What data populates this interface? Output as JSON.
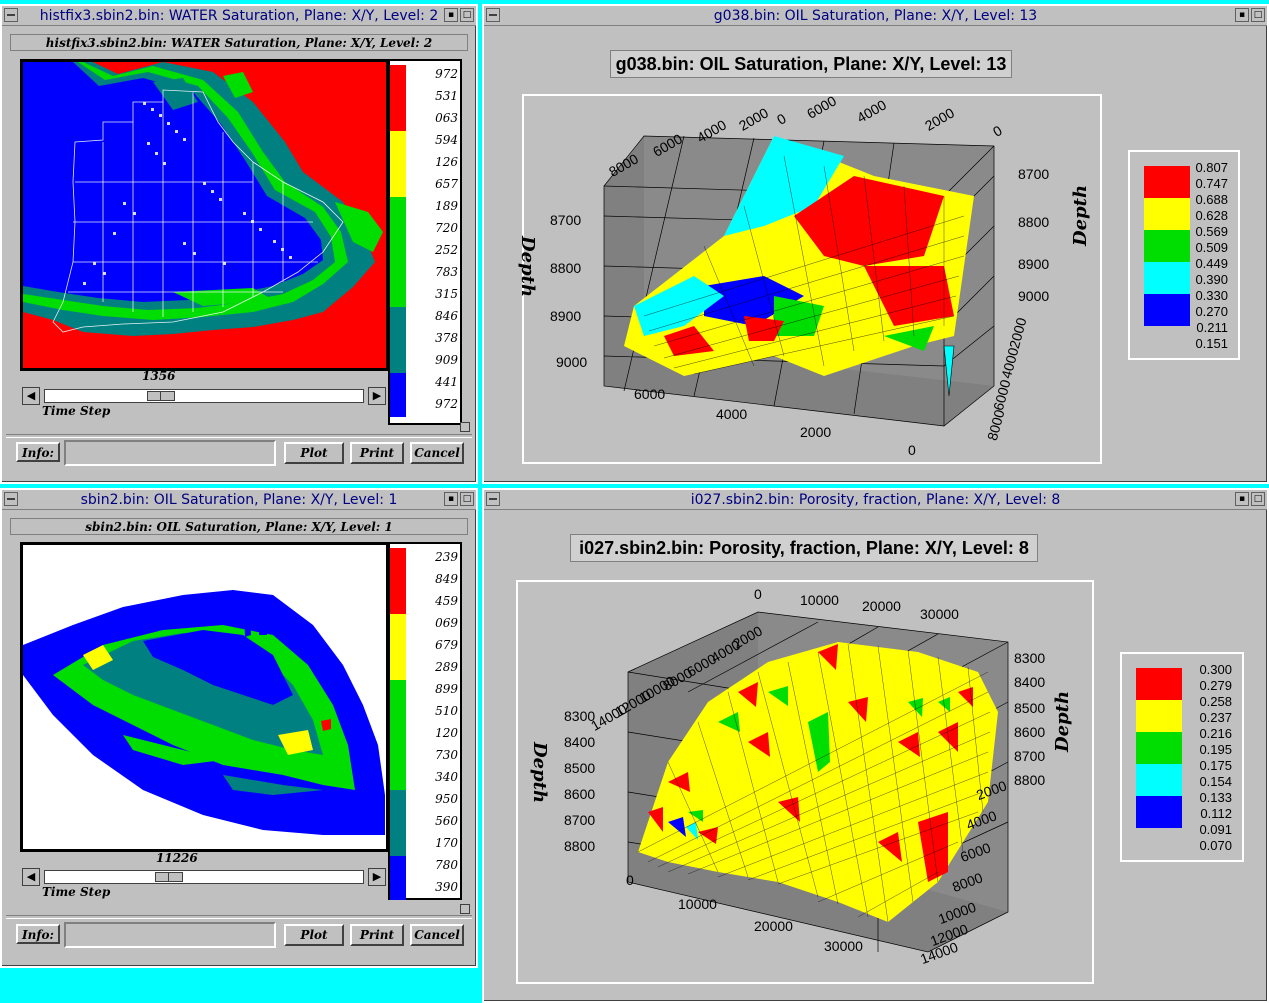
{
  "windows": {
    "w1": {
      "title": "histfix3.sbin2.bin: WATER Saturation, Plane: X/Y, Level: 2",
      "inner_title": "histfix3.sbin2.bin: WATER Saturation, Plane: X/Y, Level: 2",
      "legend_labels": [
        "972",
        "531",
        "063",
        "594",
        "126",
        "657",
        "189",
        "720",
        "252",
        "783",
        "315",
        "846",
        "378",
        "909",
        "441",
        "972"
      ],
      "slider_value": "1356",
      "slider_position": 0.35,
      "slider_label": "Time Step",
      "info_label": "Info:",
      "info_value": "",
      "plot_label": "Plot",
      "print_label": "Print",
      "cancel_label": "Cancel"
    },
    "w2": {
      "title": "g038.bin: OIL Saturation, Plane: X/Y, Level: 13",
      "chart_title": "g038.bin: OIL Saturation, Plane: X/Y, Level: 13",
      "top_x_ticks": [
        "8000",
        "6000",
        "4000",
        "2000",
        "0",
        "6000",
        "4000",
        "2000",
        "0"
      ],
      "depth_left_ticks": [
        "8700",
        "8800",
        "8900",
        "9000"
      ],
      "depth_right_ticks": [
        "8700",
        "8800",
        "8900",
        "9000"
      ],
      "bottom_x_ticks": [
        "6000",
        "4000",
        "2000",
        "0"
      ],
      "bottom_y_ticks": [
        "2000",
        "4000",
        "6000",
        "8000"
      ],
      "axis_label": "Depth",
      "legend_values": [
        "0.807",
        "0.747",
        "0.688",
        "0.628",
        "0.569",
        "0.509",
        "0.449",
        "0.390",
        "0.330",
        "0.270",
        "0.211",
        "0.151"
      ]
    },
    "w3": {
      "title": "sbin2.bin: OIL Saturation, Plane: X/Y, Level: 1",
      "inner_title": "sbin2.bin: OIL Saturation, Plane: X/Y, Level: 1",
      "legend_labels": [
        "239",
        "849",
        "459",
        "069",
        "679",
        "289",
        "899",
        "510",
        "120",
        "730",
        "340",
        "950",
        "560",
        "170",
        "780",
        "390"
      ],
      "slider_value": "11226",
      "slider_position": 0.38,
      "slider_label": "Time Step",
      "info_label": "Info:",
      "info_value": "",
      "plot_label": "Plot",
      "print_label": "Print",
      "cancel_label": "Cancel"
    },
    "w4": {
      "title": "i027.sbin2.bin: Porosity, fraction, Plane: X/Y, Level: 8",
      "chart_title": "i027.sbin2.bin: Porosity, fraction, Plane: X/Y, Level: 8",
      "top_x_ticks": [
        "0",
        "10000",
        "20000",
        "30000"
      ],
      "top_y_ticks": [
        "2000",
        "4000",
        "6000",
        "8000",
        "10000",
        "12000",
        "14000"
      ],
      "depth_left_ticks": [
        "8300",
        "8400",
        "8500",
        "8600",
        "8700",
        "8800"
      ],
      "depth_right_ticks": [
        "8300",
        "8400",
        "8500",
        "8600",
        "8700",
        "8800"
      ],
      "bottom_x_ticks": [
        "0",
        "10000",
        "20000",
        "30000"
      ],
      "bottom_y_ticks": [
        "2000",
        "4000",
        "6000",
        "8000",
        "10000",
        "12000",
        "14000"
      ],
      "axis_label": "Depth",
      "legend_values": [
        "0.300",
        "0.279",
        "0.258",
        "0.237",
        "0.216",
        "0.195",
        "0.175",
        "0.154",
        "0.133",
        "0.112",
        "0.091",
        "0.070"
      ]
    }
  },
  "colors": {
    "band": [
      "#ff0000",
      "#ffff00",
      "#00dd00",
      "#00ffff",
      "#0000ff"
    ],
    "teal": "#008080",
    "accent": "#000080",
    "desktop": "#00ffff"
  }
}
